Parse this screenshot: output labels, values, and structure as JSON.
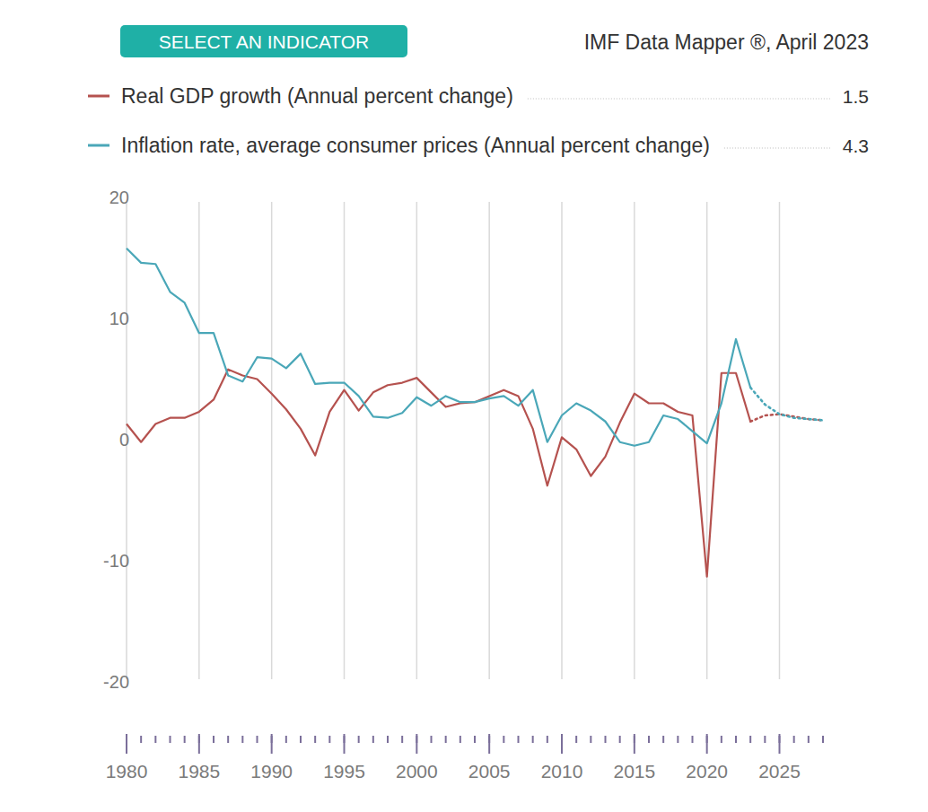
{
  "chart_data": {
    "type": "line",
    "button": "SELECT AN INDICATOR",
    "source": "IMF Data Mapper ®, April 2023",
    "x": [
      1980,
      1981,
      1982,
      1983,
      1984,
      1985,
      1986,
      1987,
      1988,
      1989,
      1990,
      1991,
      1992,
      1993,
      1994,
      1995,
      1996,
      1997,
      1998,
      1999,
      2000,
      2001,
      2002,
      2003,
      2004,
      2005,
      2006,
      2007,
      2008,
      2009,
      2010,
      2011,
      2012,
      2013,
      2014,
      2015,
      2016,
      2017,
      2018,
      2019,
      2020,
      2021,
      2022,
      2023,
      2024,
      2025,
      2026,
      2027,
      2028
    ],
    "xlim": [
      1980,
      2028
    ],
    "xticks": [
      1980,
      1985,
      1990,
      1995,
      2000,
      2005,
      2010,
      2015,
      2020,
      2025
    ],
    "ylim": [
      -20,
      20
    ],
    "yticks": [
      -20,
      -10,
      0,
      10,
      20
    ],
    "grid": true,
    "series": [
      {
        "name": "Real GDP growth (Annual percent change)",
        "color": "#b5524f",
        "line_style": "solid",
        "values": [
          1.3,
          -0.2,
          1.3,
          1.8,
          1.8,
          2.3,
          3.3,
          5.8,
          5.3,
          5.0,
          3.8,
          2.5,
          0.9,
          -1.3,
          2.3,
          4.1,
          2.4,
          3.9,
          4.5,
          4.7,
          5.1,
          3.9,
          2.7,
          3.0,
          3.1,
          3.6,
          4.1,
          3.6,
          0.9,
          -3.8,
          0.2,
          -0.8,
          -3.0,
          -1.4,
          1.4,
          3.8,
          3.0,
          3.0,
          2.3,
          2.0,
          -11.3,
          5.5,
          5.5,
          1.5,
          null,
          null,
          null,
          null,
          null
        ]
      },
      {
        "name": "Inflation rate, average consumer prices (Annual percent change)",
        "color": "#4aa7b8",
        "line_style": "solid",
        "values": [
          15.8,
          14.6,
          14.5,
          12.2,
          11.3,
          8.8,
          8.8,
          5.3,
          4.8,
          6.8,
          6.7,
          5.9,
          7.1,
          4.6,
          4.7,
          4.7,
          3.6,
          1.9,
          1.8,
          2.2,
          3.5,
          2.8,
          3.6,
          3.1,
          3.1,
          3.4,
          3.6,
          2.8,
          4.1,
          -0.2,
          2.0,
          3.0,
          2.4,
          1.5,
          -0.2,
          -0.5,
          -0.2,
          2.0,
          1.7,
          0.7,
          -0.3,
          3.0,
          8.3,
          4.3,
          null,
          null,
          null,
          null,
          null
        ]
      },
      {
        "name": "Real GDP growth (Annual percent change)",
        "color": "#b5524f",
        "line_style": "dotted",
        "values": [
          null,
          null,
          null,
          null,
          null,
          null,
          null,
          null,
          null,
          null,
          null,
          null,
          null,
          null,
          null,
          null,
          null,
          null,
          null,
          null,
          null,
          null,
          null,
          null,
          null,
          null,
          null,
          null,
          null,
          null,
          null,
          null,
          null,
          null,
          null,
          null,
          null,
          null,
          null,
          null,
          null,
          null,
          null,
          1.5,
          2.0,
          2.1,
          1.9,
          1.7,
          1.6
        ]
      },
      {
        "name": "Inflation rate, average consumer prices (Annual percent change)",
        "color": "#4aa7b8",
        "line_style": "dotted",
        "values": [
          null,
          null,
          null,
          null,
          null,
          null,
          null,
          null,
          null,
          null,
          null,
          null,
          null,
          null,
          null,
          null,
          null,
          null,
          null,
          null,
          null,
          null,
          null,
          null,
          null,
          null,
          null,
          null,
          null,
          null,
          null,
          null,
          null,
          null,
          null,
          null,
          null,
          null,
          null,
          null,
          null,
          null,
          null,
          4.3,
          2.9,
          2.1,
          1.8,
          1.7,
          1.6
        ]
      }
    ]
  }
}
